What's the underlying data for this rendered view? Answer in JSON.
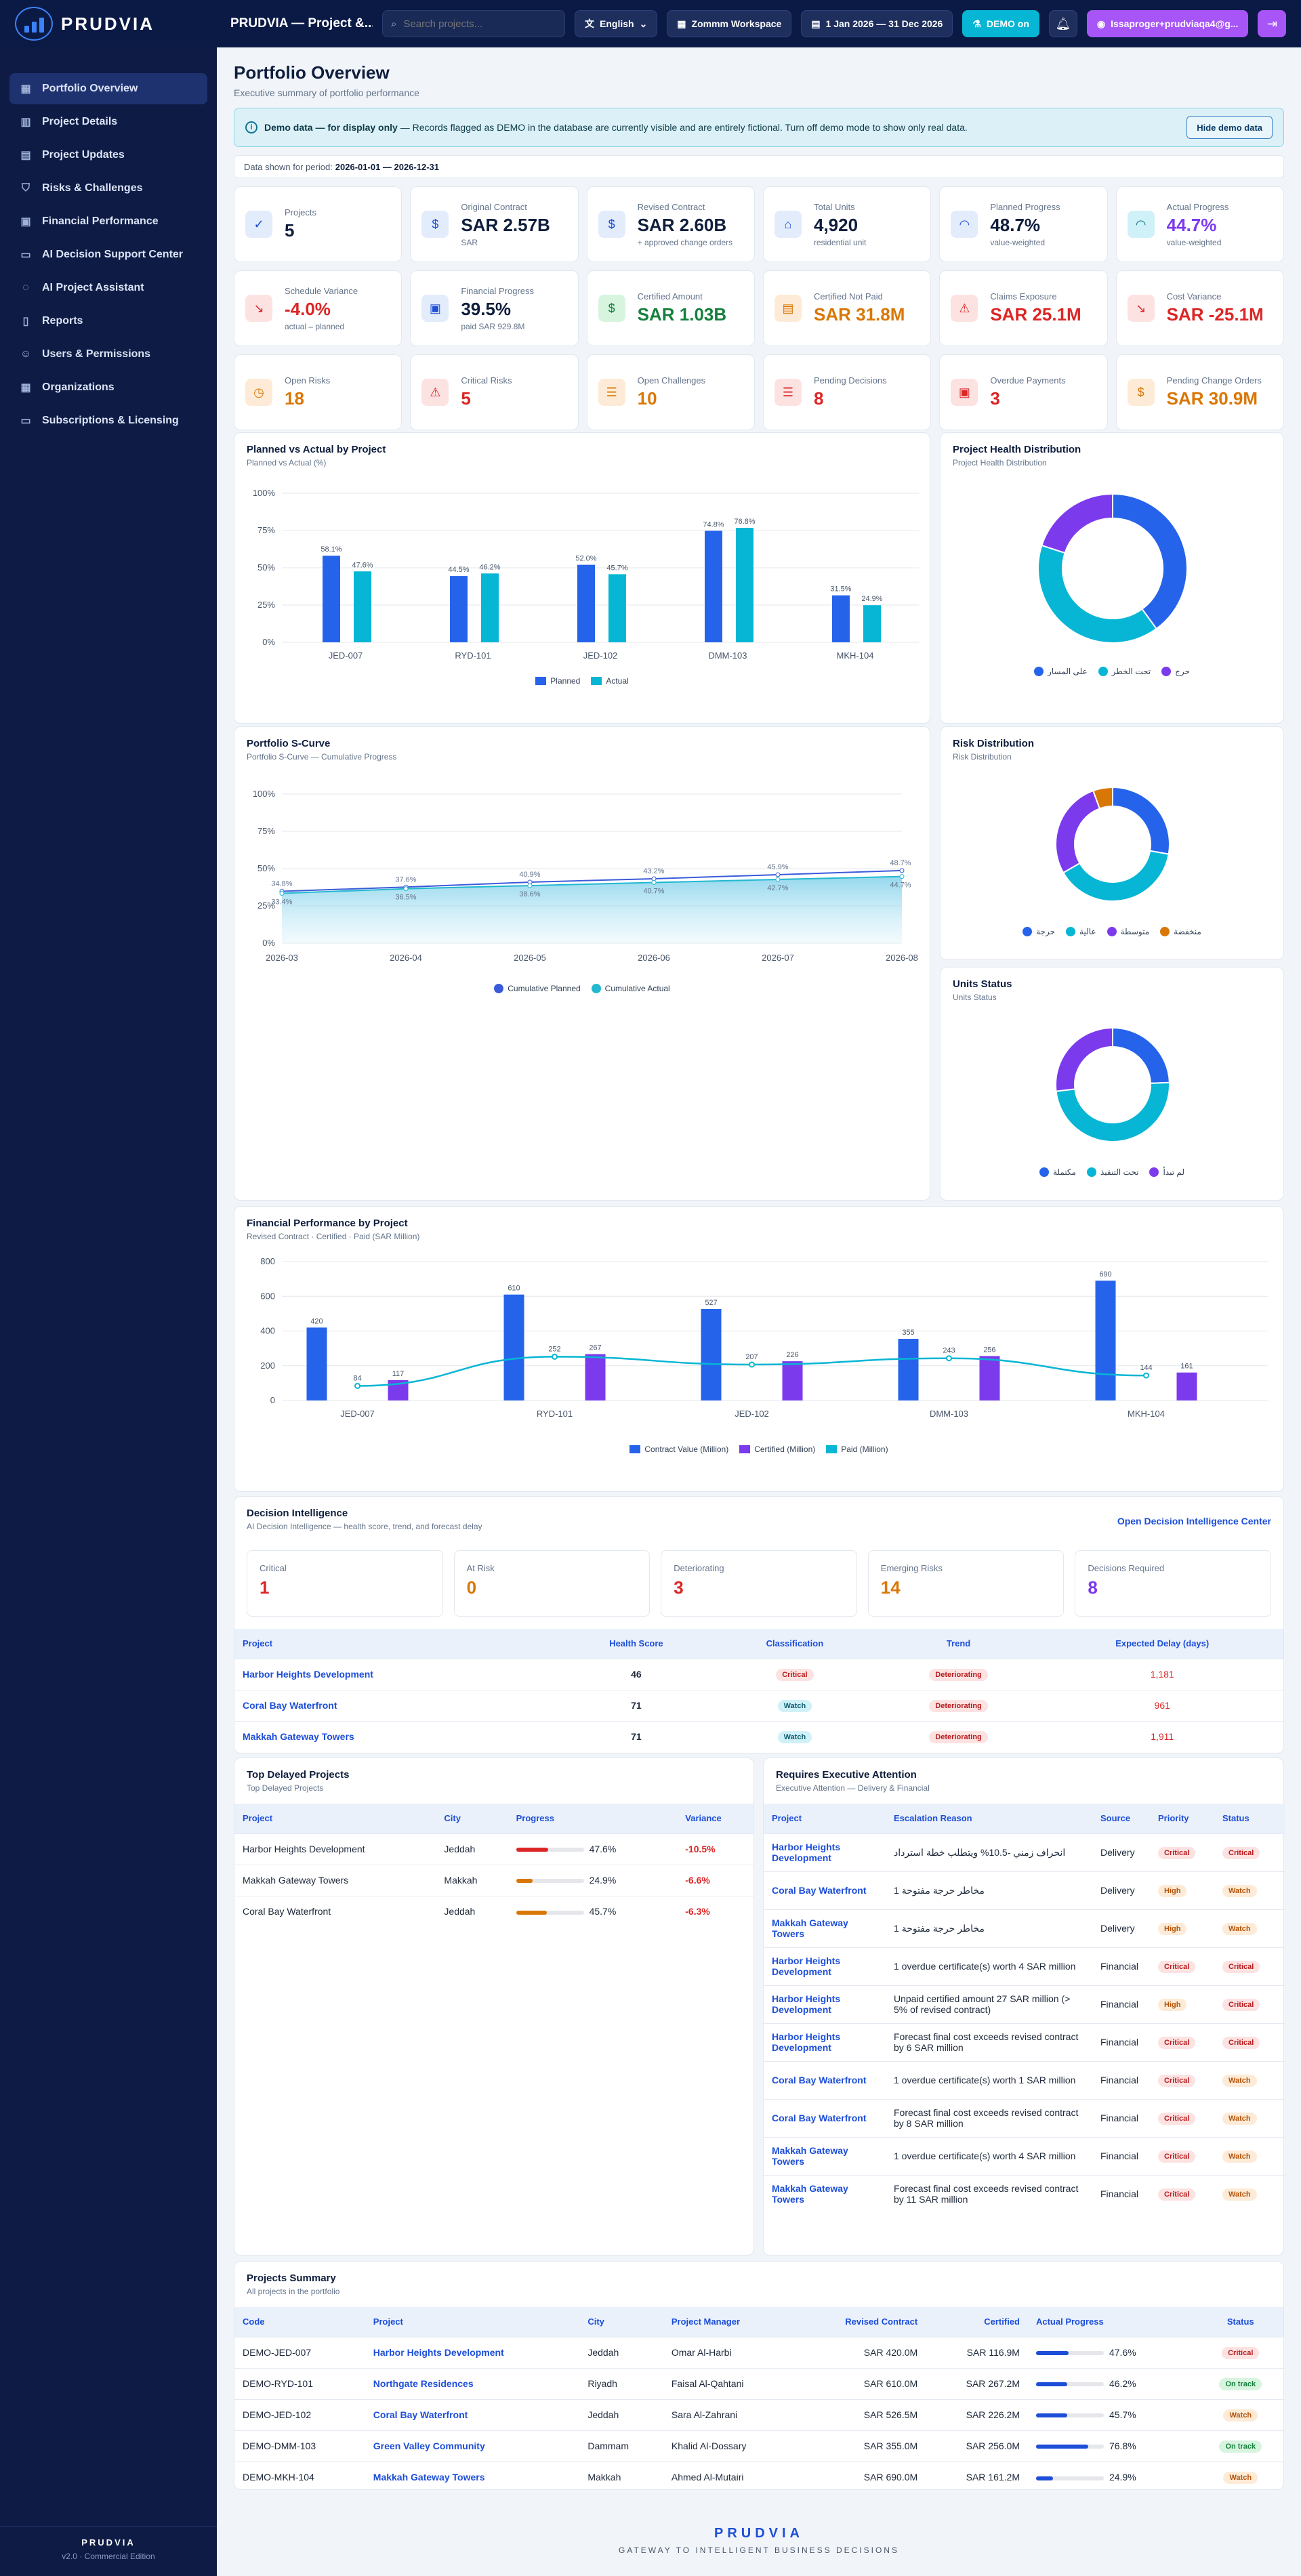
{
  "app": {
    "brand": "PRUDVIA",
    "project_title": "PRUDVIA — Project &...",
    "search_placeholder": "Search projects...",
    "language": "English",
    "workspace": "Zommm Workspace",
    "date_range": "1 Jan 2026 — 31 Dec 2026",
    "demo": "DEMO on",
    "user": "Issaproger+prudviaqa4@g..."
  },
  "sidebar": {
    "items": [
      {
        "label": "Portfolio Overview",
        "icon": "grid-icon"
      },
      {
        "label": "Project Details",
        "icon": "chart-icon"
      },
      {
        "label": "Project Updates",
        "icon": "document-icon"
      },
      {
        "label": "Risks & Challenges",
        "icon": "shield-icon"
      },
      {
        "label": "Financial Performance",
        "icon": "calculator-icon"
      },
      {
        "label": "AI Decision Support Center",
        "icon": "monitor-icon"
      },
      {
        "label": "AI Project Assistant",
        "icon": "chat-icon"
      },
      {
        "label": "Reports",
        "icon": "file-icon"
      },
      {
        "label": "Users & Permissions",
        "icon": "users-icon"
      },
      {
        "label": "Organizations",
        "icon": "building-icon"
      },
      {
        "label": "Subscriptions & Licensing",
        "icon": "card-icon"
      }
    ],
    "footer_brand": "PRUDVIA",
    "version": "v2.0 · Commercial Edition"
  },
  "page": {
    "title": "Portfolio Overview",
    "subtitle": "Executive summary of portfolio performance",
    "banner_bold": "Demo data — for display only",
    "banner_text": " — Records flagged as DEMO in the database are currently visible and are entirely fictional. Turn off demo mode to show only real data.",
    "banner_button": "Hide demo data",
    "period_label": "Data shown for period:",
    "period_value": "2026-01-01 — 2026-12-31"
  },
  "kpis": [
    {
      "label": "Projects",
      "value": "5",
      "sub": "",
      "color": "#0f1e3d",
      "icon": "✓",
      "bg": "#e3ecfb",
      "fg": "#1d4ed8"
    },
    {
      "label": "Original Contract",
      "value": "SAR 2.57B",
      "sub": "SAR",
      "color": "#0f1e3d",
      "icon": "$",
      "bg": "#e3ecfb",
      "fg": "#1d4ed8"
    },
    {
      "label": "Revised Contract",
      "value": "SAR 2.60B",
      "sub": "+ approved change orders",
      "color": "#0f1e3d",
      "icon": "$",
      "bg": "#e3ecfb",
      "fg": "#1d4ed8"
    },
    {
      "label": "Total Units",
      "value": "4,920",
      "sub": "residential unit",
      "color": "#0f1e3d",
      "icon": "⌂",
      "bg": "#e3ecfb",
      "fg": "#1d4ed8"
    },
    {
      "label": "Planned Progress",
      "value": "48.7%",
      "sub": "value-weighted",
      "color": "#0f1e3d",
      "icon": "◠",
      "bg": "#e3ecfb",
      "fg": "#1d4ed8"
    },
    {
      "label": "Actual Progress",
      "value": "44.7%",
      "sub": "value-weighted",
      "color": "#7c3aed",
      "icon": "◠",
      "bg": "#cff1f7",
      "fg": "#0e7490"
    },
    {
      "label": "Schedule Variance",
      "value": "-4.0%",
      "sub": "actual – planned",
      "color": "#dc2626",
      "icon": "↘",
      "bg": "#fde2e2",
      "fg": "#dc2626"
    },
    {
      "label": "Financial Progress",
      "value": "39.5%",
      "sub": "paid SAR 929.8M",
      "color": "#0f1e3d",
      "icon": "▣",
      "bg": "#e3ecfb",
      "fg": "#1d4ed8"
    },
    {
      "label": "Certified Amount",
      "value": "SAR 1.03B",
      "sub": "",
      "color": "#15803d",
      "icon": "$",
      "bg": "#d7f4df",
      "fg": "#15803d"
    },
    {
      "label": "Certified Not Paid",
      "value": "SAR 31.8M",
      "sub": "",
      "color": "#d97706",
      "icon": "▤",
      "bg": "#fdebd7",
      "fg": "#d97706"
    },
    {
      "label": "Claims Exposure",
      "value": "SAR 25.1M",
      "sub": "",
      "color": "#dc2626",
      "icon": "⚠",
      "bg": "#fde2e2",
      "fg": "#dc2626"
    },
    {
      "label": "Cost Variance",
      "value": "SAR -25.1M",
      "sub": "",
      "color": "#dc2626",
      "icon": "↘",
      "bg": "#fde2e2",
      "fg": "#dc2626"
    },
    {
      "label": "Open Risks",
      "value": "18",
      "sub": "",
      "color": "#d97706",
      "icon": "◷",
      "bg": "#fdebd7",
      "fg": "#d97706"
    },
    {
      "label": "Critical Risks",
      "value": "5",
      "sub": "",
      "color": "#dc2626",
      "icon": "⚠",
      "bg": "#fde2e2",
      "fg": "#dc2626"
    },
    {
      "label": "Open Challenges",
      "value": "10",
      "sub": "",
      "color": "#d97706",
      "icon": "☰",
      "bg": "#fdebd7",
      "fg": "#d97706"
    },
    {
      "label": "Pending Decisions",
      "value": "8",
      "sub": "",
      "color": "#dc2626",
      "icon": "☰",
      "bg": "#fde2e2",
      "fg": "#dc2626"
    },
    {
      "label": "Overdue Payments",
      "value": "3",
      "sub": "",
      "color": "#dc2626",
      "icon": "▣",
      "bg": "#fde2e2",
      "fg": "#dc2626"
    },
    {
      "label": "Pending Change Orders",
      "value": "SAR 30.9M",
      "sub": "",
      "color": "#d97706",
      "icon": "$",
      "bg": "#fdebd7",
      "fg": "#d97706"
    }
  ],
  "charts": {
    "pva": {
      "title": "Planned vs Actual by Project",
      "subtitle": "Planned vs Actual (%)"
    },
    "health": {
      "title": "Project Health Distribution",
      "subtitle": "Project Health Distribution"
    },
    "scurve": {
      "title": "Portfolio S-Curve",
      "subtitle": "Portfolio S-Curve — Cumulative Progress"
    },
    "risk": {
      "title": "Risk Distribution",
      "subtitle": "Risk Distribution"
    },
    "units": {
      "title": "Units Status",
      "subtitle": "Units Status"
    },
    "fin": {
      "title": "Financial Performance by Project",
      "subtitle": "Revised Contract · Certified · Paid (SAR Million)"
    }
  },
  "chart_data": [
    {
      "type": "bar",
      "categories": [
        "JED-007",
        "RYD-101",
        "JED-102",
        "DMM-103",
        "MKH-104"
      ],
      "series": [
        {
          "name": "Planned",
          "values": [
            58.1,
            44.5,
            52.0,
            74.8,
            31.5
          ]
        },
        {
          "name": "Actual",
          "values": [
            47.6,
            46.2,
            45.7,
            76.8,
            24.9
          ]
        }
      ],
      "ylim": [
        0,
        100
      ],
      "yticks": [
        "0%",
        "25%",
        "50%",
        "75%",
        "100%"
      ],
      "colors": [
        "#2563eb",
        "#06b6d4"
      ]
    },
    {
      "type": "pie",
      "labels": [
        "على المسار",
        "تحت الخطر",
        "حرج"
      ],
      "values": [
        2,
        2,
        1
      ],
      "colors": [
        "#2563eb",
        "#06b6d4",
        "#7c3aed"
      ]
    },
    {
      "type": "area",
      "x": [
        "2026-03",
        "2026-04",
        "2026-05",
        "2026-06",
        "2026-07",
        "2026-08"
      ],
      "series": [
        {
          "name": "Cumulative Planned",
          "values": [
            34.8,
            37.6,
            40.9,
            43.2,
            45.9,
            48.7
          ]
        },
        {
          "name": "Cumulative Actual",
          "values": [
            33.4,
            36.5,
            38.6,
            40.7,
            42.7,
            44.7
          ]
        }
      ],
      "ylim": [
        0,
        100
      ],
      "yticks": [
        "0%",
        "25%",
        "50%",
        "75%",
        "100%"
      ],
      "colors": [
        "#3b5bdb",
        "#22b8cf"
      ]
    },
    {
      "type": "pie",
      "labels": [
        "حرجة",
        "عالية",
        "متوسطة",
        "منخفضة"
      ],
      "values": [
        5,
        7,
        5,
        1
      ],
      "colors": [
        "#2563eb",
        "#06b6d4",
        "#7c3aed",
        "#d97706"
      ]
    },
    {
      "type": "pie",
      "labels": [
        "مكتملة",
        "تحت التنفيذ",
        "لم تبدأ"
      ],
      "values": [
        1200,
        2400,
        1320
      ],
      "colors": [
        "#2563eb",
        "#06b6d4",
        "#7c3aed"
      ]
    },
    {
      "type": "bar",
      "categories": [
        "JED-007",
        "RYD-101",
        "JED-102",
        "DMM-103",
        "MKH-104"
      ],
      "series": [
        {
          "name": "Contract Value (Million)",
          "values": [
            420,
            610,
            527,
            355,
            690
          ]
        },
        {
          "name": "Certified (Million)",
          "values": [
            117,
            267,
            226,
            256,
            161
          ]
        },
        {
          "name": "Paid (Million)",
          "values": [
            84,
            252,
            207,
            243,
            144
          ]
        }
      ],
      "ylim": [
        0,
        800
      ],
      "yticks": [
        "0",
        "200",
        "400",
        "600",
        "800"
      ],
      "colors": [
        "#2563eb",
        "#7c3aed",
        "#06b6d4"
      ]
    }
  ],
  "decision": {
    "title": "Decision Intelligence",
    "subtitle": "AI Decision Intelligence — health score, trend, and forecast delay",
    "link": "Open Decision Intelligence Center",
    "stats": [
      {
        "label": "Critical",
        "value": "1",
        "color": "#dc2626"
      },
      {
        "label": "At Risk",
        "value": "0",
        "color": "#d97706"
      },
      {
        "label": "Deteriorating",
        "value": "3",
        "color": "#dc2626"
      },
      {
        "label": "Emerging Risks",
        "value": "14",
        "color": "#d97706"
      },
      {
        "label": "Decisions Required",
        "value": "8",
        "color": "#7c3aed"
      }
    ],
    "headers": [
      "Project",
      "Health Score",
      "Classification",
      "Trend",
      "Expected Delay (days)"
    ],
    "rows": [
      {
        "project": "Harbor Heights Development",
        "score": "46",
        "class": "Critical",
        "cls": "b-red",
        "trend": "Deteriorating",
        "delay": "1,181"
      },
      {
        "project": "Coral Bay Waterfront",
        "score": "71",
        "class": "Watch",
        "cls": "b-cy",
        "trend": "Deteriorating",
        "delay": "961"
      },
      {
        "project": "Makkah Gateway Towers",
        "score": "71",
        "class": "Watch",
        "cls": "b-cy",
        "trend": "Deteriorating",
        "delay": "1,911"
      }
    ]
  },
  "delayed": {
    "title": "Top Delayed Projects",
    "subtitle": "Top Delayed Projects",
    "headers": [
      "Project",
      "City",
      "Progress",
      "Variance"
    ],
    "rows": [
      {
        "project": "Harbor Heights Development",
        "city": "Jeddah",
        "progress": "47.6%",
        "pct": 47.6,
        "bar": "#dc2626",
        "variance": "-10.5%"
      },
      {
        "project": "Makkah Gateway Towers",
        "city": "Makkah",
        "progress": "24.9%",
        "pct": 24.9,
        "bar": "#d97706",
        "variance": "-6.6%"
      },
      {
        "project": "Coral Bay Waterfront",
        "city": "Jeddah",
        "progress": "45.7%",
        "pct": 45.7,
        "bar": "#d97706",
        "variance": "-6.3%"
      }
    ]
  },
  "attention": {
    "title": "Requires Executive Attention",
    "subtitle": "Executive Attention — Delivery & Financial",
    "headers": [
      "Project",
      "Escalation Reason",
      "Source",
      "Priority",
      "Status"
    ],
    "rows": [
      {
        "project": "Harbor Heights Development",
        "reason": "انحراف زمني -10.5% ويتطلب خطة استرداد",
        "source": "Delivery",
        "priority": "Critical",
        "pc": "b-red",
        "status": "Critical",
        "sc": "b-red"
      },
      {
        "project": "Coral Bay Waterfront",
        "reason": "1 مخاطر حرجة مفتوحة",
        "source": "Delivery",
        "priority": "High",
        "pc": "b-org",
        "status": "Watch",
        "sc": "b-org"
      },
      {
        "project": "Makkah Gateway Towers",
        "reason": "1 مخاطر حرجة مفتوحة",
        "source": "Delivery",
        "priority": "High",
        "pc": "b-org",
        "status": "Watch",
        "sc": "b-org"
      },
      {
        "project": "Harbor Heights Development",
        "reason": "1 overdue certificate(s) worth 4 SAR million",
        "source": "Financial",
        "priority": "Critical",
        "pc": "b-red",
        "status": "Critical",
        "sc": "b-red"
      },
      {
        "project": "Harbor Heights Development",
        "reason": "Unpaid certified amount 27 SAR million (> 5% of revised contract)",
        "source": "Financial",
        "priority": "High",
        "pc": "b-org",
        "status": "Critical",
        "sc": "b-red"
      },
      {
        "project": "Harbor Heights Development",
        "reason": "Forecast final cost exceeds revised contract by 6 SAR million",
        "source": "Financial",
        "priority": "Critical",
        "pc": "b-red",
        "status": "Critical",
        "sc": "b-red"
      },
      {
        "project": "Coral Bay Waterfront",
        "reason": "1 overdue certificate(s) worth 1 SAR million",
        "source": "Financial",
        "priority": "Critical",
        "pc": "b-red",
        "status": "Watch",
        "sc": "b-org"
      },
      {
        "project": "Coral Bay Waterfront",
        "reason": "Forecast final cost exceeds revised contract by 8 SAR million",
        "source": "Financial",
        "priority": "Critical",
        "pc": "b-red",
        "status": "Watch",
        "sc": "b-org"
      },
      {
        "project": "Makkah Gateway Towers",
        "reason": "1 overdue certificate(s) worth 4 SAR million",
        "source": "Financial",
        "priority": "Critical",
        "pc": "b-red",
        "status": "Watch",
        "sc": "b-org"
      },
      {
        "project": "Makkah Gateway Towers",
        "reason": "Forecast final cost exceeds revised contract by 11 SAR million",
        "source": "Financial",
        "priority": "Critical",
        "pc": "b-red",
        "status": "Watch",
        "sc": "b-org"
      }
    ]
  },
  "summary": {
    "title": "Projects Summary",
    "subtitle": "All projects in the portfolio",
    "headers": [
      "Code",
      "Project",
      "City",
      "Project Manager",
      "Revised Contract",
      "Certified",
      "Actual Progress",
      "Status"
    ],
    "rows": [
      {
        "code": "DEMO-JED-007",
        "project": "Harbor Heights Development",
        "city": "Jeddah",
        "pm": "Omar Al-Harbi",
        "revised": "SAR 420.0M",
        "certified": "SAR 116.9M",
        "progress": "47.6%",
        "pct": 47.6,
        "status": "Critical",
        "sc": "b-red"
      },
      {
        "code": "DEMO-RYD-101",
        "project": "Northgate Residences",
        "city": "Riyadh",
        "pm": "Faisal Al-Qahtani",
        "revised": "SAR 610.0M",
        "certified": "SAR 267.2M",
        "progress": "46.2%",
        "pct": 46.2,
        "status": "On track",
        "sc": "b-grn"
      },
      {
        "code": "DEMO-JED-102",
        "project": "Coral Bay Waterfront",
        "city": "Jeddah",
        "pm": "Sara Al-Zahrani",
        "revised": "SAR 526.5M",
        "certified": "SAR 226.2M",
        "progress": "45.7%",
        "pct": 45.7,
        "status": "Watch",
        "sc": "b-org"
      },
      {
        "code": "DEMO-DMM-103",
        "project": "Green Valley Community",
        "city": "Dammam",
        "pm": "Khalid Al-Dossary",
        "revised": "SAR 355.0M",
        "certified": "SAR 256.0M",
        "progress": "76.8%",
        "pct": 76.8,
        "status": "On track",
        "sc": "b-grn"
      },
      {
        "code": "DEMO-MKH-104",
        "project": "Makkah Gateway Towers",
        "city": "Makkah",
        "pm": "Ahmed Al-Mutairi",
        "revised": "SAR 690.0M",
        "certified": "SAR 161.2M",
        "progress": "24.9%",
        "pct": 24.9,
        "status": "Watch",
        "sc": "b-org"
      }
    ]
  },
  "footer": {
    "brand": "PRUDVIA",
    "tagline": "GATEWAY TO INTELLIGENT BUSINESS DECISIONS"
  }
}
